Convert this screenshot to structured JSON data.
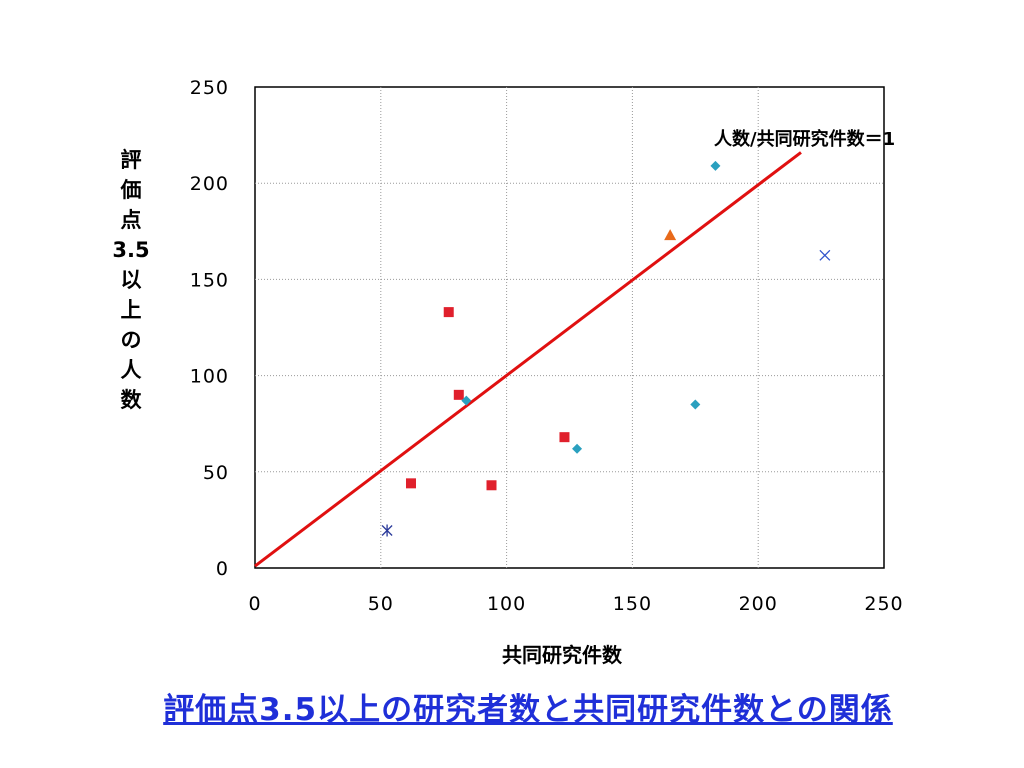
{
  "page": {
    "title": "評価点3.5以上の研究者数と共同研究件数との関係"
  },
  "chart_data": {
    "type": "scatter",
    "xlabel": "共同研究件数",
    "ylabel": "評価点3.5以上の人数",
    "ylabel_chars": [
      "評",
      "価",
      "点",
      "3.5",
      "以",
      "上",
      "の",
      "人",
      "数"
    ],
    "xlim": [
      0,
      250
    ],
    "ylim": [
      0,
      250
    ],
    "xticks": [
      0,
      50,
      100,
      150,
      200,
      250
    ],
    "yticks": [
      0,
      50,
      100,
      150,
      200,
      250
    ],
    "grid": true,
    "series": [
      {
        "marker": "square",
        "color": "#e0202c",
        "points": [
          [
            77,
            133
          ],
          [
            81,
            90
          ],
          [
            62,
            44
          ],
          [
            94,
            43
          ],
          [
            123,
            68
          ]
        ]
      },
      {
        "marker": "diamond",
        "color": "#2aa0bf",
        "points": [
          [
            84,
            87
          ],
          [
            128,
            62
          ],
          [
            175,
            85
          ],
          [
            183,
            209
          ]
        ]
      },
      {
        "marker": "triangle",
        "color": "#e86a1a",
        "points": [
          [
            165,
            173
          ]
        ]
      },
      {
        "marker": "x",
        "color": "#3355cc",
        "points": [
          [
            226.5,
            162.5
          ]
        ]
      },
      {
        "marker": "asterisk",
        "color": "#2b3a9a",
        "points": [
          [
            52.5,
            19.5
          ]
        ]
      }
    ],
    "reference_line": {
      "label": "人数/共同研究件数＝1",
      "color": "#e01010",
      "from": [
        0,
        1
      ],
      "to": [
        217,
        216
      ]
    }
  }
}
